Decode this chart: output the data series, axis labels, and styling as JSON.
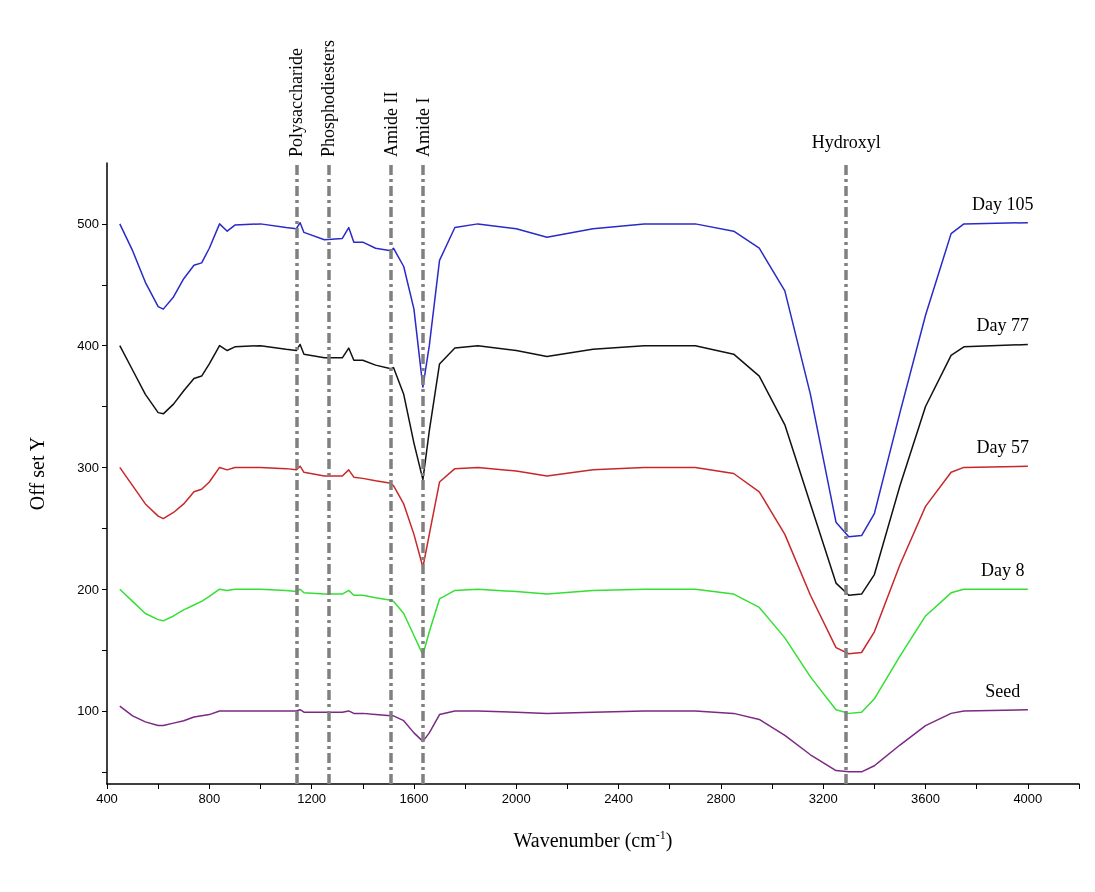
{
  "chart_data": {
    "type": "line",
    "xlabel": "Wavenumber (cm$^{-1}$)",
    "ylabel": "Off set Y",
    "xlim": [
      400,
      4200
    ],
    "xticks": [
      400,
      {
        "value": 600,
        "label": null
      },
      800,
      {
        "value": 1000,
        "label": null
      },
      1200,
      {
        "value": 1400,
        "label": null
      },
      1600,
      {
        "value": 1800,
        "label": null
      },
      2000,
      {
        "value": 2200,
        "label": null
      },
      2400,
      {
        "value": 2600,
        "label": null
      },
      2800,
      {
        "value": 3000,
        "label": null
      },
      3200,
      {
        "value": 3400,
        "label": null
      },
      3600,
      {
        "value": 3800,
        "label": null
      },
      4000,
      {
        "value": 4200,
        "label": null
      }
    ],
    "ylim": [
      40,
      550
    ],
    "yticks": [
      {
        "value": 50,
        "label": null
      },
      100,
      {
        "value": 150,
        "label": null
      },
      200,
      {
        "value": 250,
        "label": null
      },
      300,
      {
        "value": 350,
        "label": null
      },
      400,
      {
        "value": 450,
        "label": null
      },
      500
    ],
    "grid": false,
    "legend": false,
    "line_style": "solid",
    "x": [
      450,
      500,
      550,
      600,
      620,
      660,
      700,
      740,
      770,
      800,
      840,
      870,
      900,
      1000,
      1100,
      1140,
      1155,
      1170,
      1250,
      1320,
      1345,
      1365,
      1400,
      1450,
      1510,
      1520,
      1560,
      1600,
      1635,
      1660,
      1700,
      1760,
      1850,
      2000,
      2120,
      2300,
      2500,
      2700,
      2850,
      2950,
      3050,
      3150,
      3250,
      3300,
      3350,
      3400,
      3500,
      3600,
      3700,
      3750,
      4000
    ],
    "series": [
      {
        "name": "Day 105",
        "color": "#2a2ac8",
        "values": [
          500,
          478,
          452,
          432,
          430,
          440,
          455,
          466,
          468,
          480,
          500,
          494,
          499,
          500,
          497,
          496,
          501,
          493,
          487,
          488,
          497,
          485,
          485,
          480,
          478,
          480,
          465,
          430,
          366,
          400,
          470,
          497,
          500,
          496,
          489,
          496,
          500,
          500,
          494,
          480,
          445,
          360,
          255,
          243,
          244,
          262,
          345,
          425,
          492,
          500,
          501
        ]
      },
      {
        "name": "Day 77",
        "color": "#111111",
        "values": [
          400,
          380,
          360,
          345,
          344,
          352,
          363,
          373,
          375,
          385,
          400,
          396,
          399,
          400,
          397,
          396,
          401,
          393,
          390,
          390,
          398,
          388,
          388,
          384,
          381,
          382,
          360,
          320,
          290,
          330,
          385,
          398,
          400,
          396,
          391,
          397,
          400,
          400,
          393,
          375,
          335,
          270,
          205,
          195,
          196,
          212,
          285,
          350,
          392,
          399,
          401
        ]
      },
      {
        "name": "Day 57",
        "color": "#c8282a",
        "values": [
          300,
          285,
          270,
          260,
          258,
          263,
          270,
          280,
          282,
          288,
          300,
          298,
          300,
          300,
          299,
          298,
          301,
          296,
          293,
          293,
          298,
          292,
          291,
          289,
          287,
          285,
          270,
          245,
          218,
          245,
          288,
          299,
          300,
          297,
          293,
          298,
          300,
          300,
          295,
          280,
          245,
          195,
          152,
          147,
          148,
          165,
          220,
          268,
          296,
          300,
          301
        ]
      },
      {
        "name": "Day 8",
        "color": "#33e033",
        "values": [
          200,
          190,
          180,
          175,
          174,
          178,
          183,
          187,
          190,
          194,
          200,
          199,
          200,
          200,
          199,
          198,
          200,
          197,
          196,
          196,
          199,
          195,
          195,
          193,
          191,
          190,
          180,
          162,
          146,
          165,
          192,
          199,
          200,
          198,
          196,
          199,
          200,
          200,
          196,
          185,
          160,
          128,
          101,
          98,
          99,
          110,
          145,
          178,
          197,
          200,
          200
        ]
      },
      {
        "name": "Seed",
        "color": "#7a2a82",
        "values": [
          104,
          96,
          91,
          88,
          88,
          90,
          92,
          95,
          96,
          97,
          100,
          100,
          100,
          100,
          100,
          100,
          101,
          99,
          99,
          99,
          100,
          98,
          98,
          97,
          96,
          96,
          92,
          82,
          75,
          82,
          97,
          100,
          100,
          99,
          98,
          99,
          100,
          100,
          98,
          93,
          80,
          64,
          51,
          50,
          50,
          55,
          72,
          88,
          98,
          100,
          101
        ]
      }
    ],
    "ref_lines": [
      {
        "axis": "x",
        "value": 1140,
        "label": "Polysaccharide",
        "color": "#808080",
        "line_style": "dashed"
      },
      {
        "axis": "x",
        "value": 1265,
        "label": "Phosphodiesters",
        "color": "#808080",
        "line_style": "dashed"
      },
      {
        "axis": "x",
        "value": 1510,
        "label": "Amide II",
        "color": "#808080",
        "line_style": "dashed"
      },
      {
        "axis": "x",
        "value": 1635,
        "label": "Amide I",
        "color": "#808080",
        "line_style": "dashed"
      },
      {
        "axis": "x",
        "value": 3290,
        "label": "Hydroxyl",
        "color": "#808080",
        "line_style": "dashed"
      }
    ]
  }
}
